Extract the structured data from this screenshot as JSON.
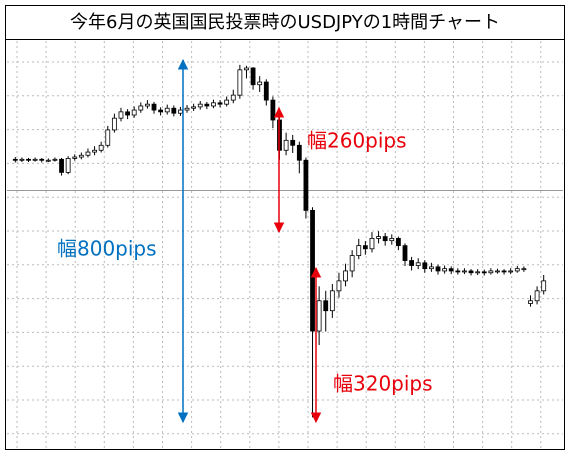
{
  "chart_data": {
    "type": "candlestick",
    "title": "今年6月の英国国民投票時のUSDJPYの1時間チャート",
    "ylim": [
      98.3,
      107.35
    ],
    "grid": true,
    "price_line": 104.02,
    "annotations": [
      {
        "text": "幅260pips",
        "color": "#e8000b"
      },
      {
        "text": "幅800pips",
        "color": "#0070c0"
      },
      {
        "text": "幅320pips",
        "color": "#e8000b"
      }
    ],
    "open": [
      104.71,
      104.69,
      104.71,
      104.69,
      104.71,
      104.69,
      104.69,
      104.71,
      104.42,
      104.73,
      104.76,
      104.8,
      104.87,
      104.91,
      105.02,
      105.36,
      105.62,
      105.76,
      105.69,
      105.8,
      105.89,
      105.93,
      105.8,
      105.76,
      105.84,
      105.73,
      105.8,
      105.84,
      105.87,
      105.93,
      105.89,
      105.96,
      105.93,
      106.02,
      106.13,
      106.69,
      106.73,
      106.36,
      106.42,
      106.02,
      105.58,
      104.91,
      105.13,
      105.02,
      104.69,
      103.58,
      100.91,
      101.58,
      101.36,
      101.8,
      102.02,
      102.24,
      102.58,
      102.8,
      102.73,
      102.96,
      103.0,
      102.91,
      102.96,
      102.8,
      102.47,
      102.36,
      102.42,
      102.29,
      102.33,
      102.24,
      102.29,
      102.24,
      102.22,
      102.24,
      102.2,
      102.22,
      102.2,
      102.24,
      102.24,
      102.22,
      102.24,
      102.29,
      101.52,
      101.58,
      101.8
    ],
    "high": [
      104.76,
      104.75,
      104.74,
      104.75,
      104.74,
      104.73,
      104.75,
      104.74,
      104.78,
      104.82,
      104.86,
      104.95,
      105.0,
      105.1,
      105.45,
      105.72,
      105.85,
      105.82,
      105.88,
      105.97,
      106.02,
      105.98,
      105.86,
      105.92,
      105.9,
      105.87,
      105.91,
      105.94,
      106.0,
      105.98,
      106.03,
      106.02,
      106.1,
      106.25,
      106.8,
      106.78,
      106.75,
      106.55,
      106.48,
      106.1,
      105.65,
      105.3,
      105.25,
      105.1,
      104.75,
      103.65,
      101.9,
      101.8,
      101.95,
      102.2,
      102.4,
      102.7,
      102.95,
      102.9,
      103.1,
      103.12,
      103.08,
      103.05,
      103.0,
      102.85,
      102.55,
      102.52,
      102.48,
      102.42,
      102.38,
      102.36,
      102.34,
      102.3,
      102.3,
      102.28,
      102.28,
      102.27,
      102.3,
      102.29,
      102.28,
      102.3,
      102.35,
      102.34,
      101.7,
      101.9,
      102.15
    ],
    "low": [
      104.64,
      104.65,
      104.65,
      104.66,
      104.64,
      104.65,
      104.66,
      104.35,
      104.38,
      104.68,
      104.71,
      104.75,
      104.8,
      104.86,
      104.97,
      105.3,
      105.55,
      105.6,
      105.63,
      105.74,
      105.83,
      105.72,
      105.68,
      105.7,
      105.66,
      105.67,
      105.74,
      105.78,
      105.81,
      105.82,
      105.84,
      105.86,
      105.88,
      105.95,
      106.05,
      106.5,
      106.25,
      106.2,
      105.9,
      105.4,
      104.7,
      104.8,
      104.85,
      104.4,
      103.4,
      99.0,
      100.6,
      100.9,
      101.2,
      101.65,
      101.9,
      102.1,
      102.5,
      102.6,
      102.65,
      102.85,
      102.8,
      102.82,
      102.7,
      102.35,
      102.25,
      102.28,
      102.2,
      102.22,
      102.16,
      102.18,
      102.17,
      102.16,
      102.17,
      102.14,
      102.15,
      102.14,
      102.16,
      102.18,
      102.16,
      102.17,
      102.2,
      102.22,
      101.45,
      101.5,
      101.72
    ],
    "close": [
      104.69,
      104.71,
      104.69,
      104.71,
      104.69,
      104.69,
      104.71,
      104.42,
      104.73,
      104.76,
      104.8,
      104.87,
      104.91,
      105.02,
      105.36,
      105.62,
      105.76,
      105.69,
      105.8,
      105.89,
      105.93,
      105.8,
      105.76,
      105.84,
      105.73,
      105.8,
      105.84,
      105.87,
      105.93,
      105.89,
      105.96,
      105.93,
      106.02,
      106.13,
      106.69,
      106.73,
      106.36,
      106.42,
      106.02,
      105.58,
      104.91,
      105.13,
      105.02,
      104.69,
      103.58,
      100.91,
      101.58,
      101.36,
      101.8,
      102.02,
      102.24,
      102.58,
      102.8,
      102.73,
      102.96,
      103.0,
      102.91,
      102.96,
      102.8,
      102.47,
      102.36,
      102.42,
      102.29,
      102.33,
      102.24,
      102.29,
      102.24,
      102.22,
      102.24,
      102.2,
      102.22,
      102.2,
      102.24,
      102.24,
      102.22,
      102.24,
      102.29,
      102.29,
      101.58,
      101.8,
      102.02
    ]
  }
}
